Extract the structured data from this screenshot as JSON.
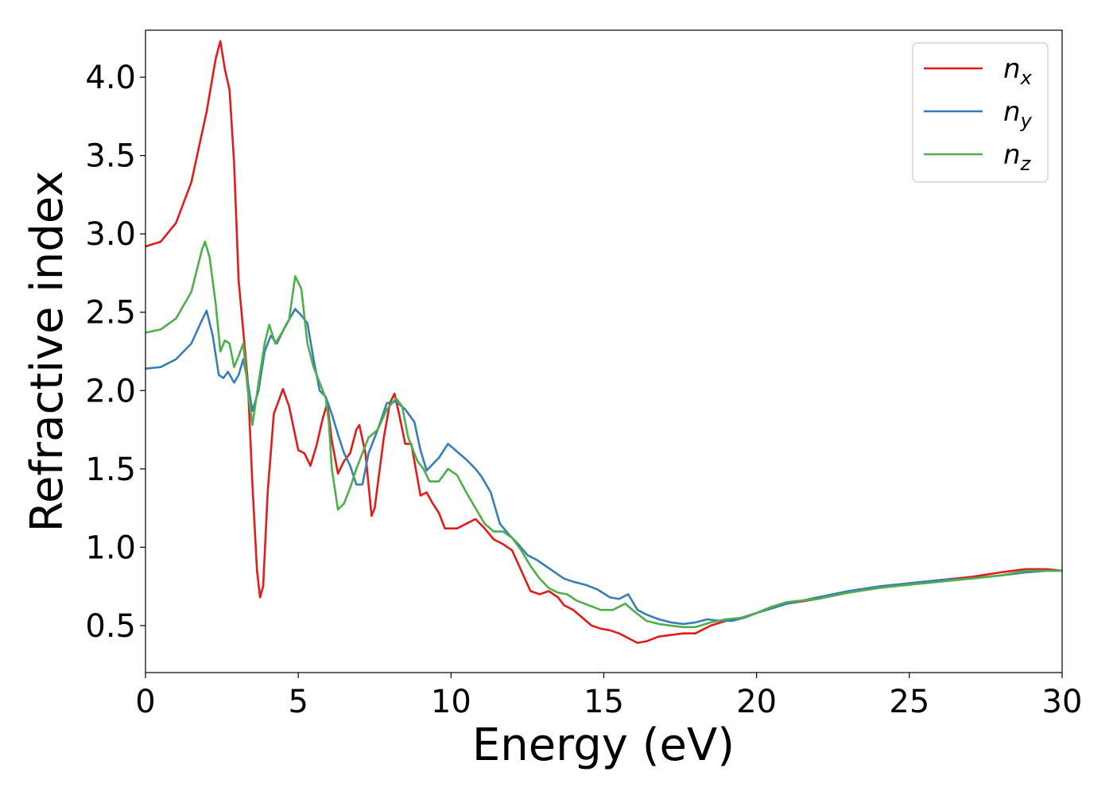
{
  "chart_data": {
    "type": "line",
    "xlabel": "Energy (eV)",
    "ylabel": "Refractive index",
    "xlim": [
      0,
      30
    ],
    "ylim": [
      0.2,
      4.3
    ],
    "xticks": [
      0,
      5,
      10,
      15,
      20,
      25,
      30
    ],
    "xtick_labels": [
      "0",
      "5",
      "10",
      "15",
      "20",
      "25",
      "30"
    ],
    "yticks": [
      0.5,
      1.0,
      1.5,
      2.0,
      2.5,
      3.0,
      3.5,
      4.0
    ],
    "ytick_labels": [
      "0.5",
      "1.0",
      "1.5",
      "2.0",
      "2.5",
      "3.0",
      "3.5",
      "4.0"
    ],
    "grid": false,
    "legend_position": "top-right",
    "series": [
      {
        "name": "n_x",
        "label_base": "n",
        "label_sub": "x",
        "color": "#e41a1c",
        "points": [
          [
            0,
            2.92
          ],
          [
            0.5,
            2.95
          ],
          [
            1,
            3.07
          ],
          [
            1.5,
            3.33
          ],
          [
            2,
            3.78
          ],
          [
            2.3,
            4.12
          ],
          [
            2.45,
            4.23
          ],
          [
            2.6,
            4.05
          ],
          [
            2.75,
            3.92
          ],
          [
            2.9,
            3.45
          ],
          [
            3.05,
            2.7
          ],
          [
            3.2,
            2.38
          ],
          [
            3.35,
            2.05
          ],
          [
            3.5,
            1.4
          ],
          [
            3.65,
            0.85
          ],
          [
            3.75,
            0.68
          ],
          [
            3.85,
            0.75
          ],
          [
            4.0,
            1.35
          ],
          [
            4.2,
            1.85
          ],
          [
            4.5,
            2.01
          ],
          [
            4.7,
            1.9
          ],
          [
            5.0,
            1.62
          ],
          [
            5.2,
            1.6
          ],
          [
            5.4,
            1.52
          ],
          [
            5.6,
            1.65
          ],
          [
            5.8,
            1.82
          ],
          [
            5.95,
            1.92
          ],
          [
            6.1,
            1.68
          ],
          [
            6.3,
            1.47
          ],
          [
            6.5,
            1.55
          ],
          [
            6.7,
            1.6
          ],
          [
            6.9,
            1.75
          ],
          [
            7.0,
            1.78
          ],
          [
            7.2,
            1.6
          ],
          [
            7.4,
            1.2
          ],
          [
            7.5,
            1.25
          ],
          [
            7.8,
            1.7
          ],
          [
            8.0,
            1.92
          ],
          [
            8.15,
            1.98
          ],
          [
            8.3,
            1.85
          ],
          [
            8.5,
            1.66
          ],
          [
            8.7,
            1.66
          ],
          [
            9.0,
            1.33
          ],
          [
            9.2,
            1.35
          ],
          [
            9.4,
            1.28
          ],
          [
            9.6,
            1.22
          ],
          [
            9.8,
            1.12
          ],
          [
            10.2,
            1.12
          ],
          [
            10.5,
            1.15
          ],
          [
            10.8,
            1.18
          ],
          [
            11.1,
            1.12
          ],
          [
            11.4,
            1.05
          ],
          [
            11.7,
            1.02
          ],
          [
            12.0,
            0.98
          ],
          [
            12.3,
            0.85
          ],
          [
            12.6,
            0.72
          ],
          [
            12.9,
            0.7
          ],
          [
            13.2,
            0.72
          ],
          [
            13.5,
            0.68
          ],
          [
            13.7,
            0.63
          ],
          [
            14.0,
            0.6
          ],
          [
            14.3,
            0.55
          ],
          [
            14.6,
            0.5
          ],
          [
            14.9,
            0.48
          ],
          [
            15.2,
            0.47
          ],
          [
            15.5,
            0.45
          ],
          [
            15.8,
            0.42
          ],
          [
            16.1,
            0.39
          ],
          [
            16.4,
            0.4
          ],
          [
            16.8,
            0.43
          ],
          [
            17.2,
            0.44
          ],
          [
            17.6,
            0.45
          ],
          [
            18.0,
            0.45
          ],
          [
            18.5,
            0.5
          ],
          [
            19.0,
            0.53
          ],
          [
            19.5,
            0.55
          ],
          [
            20.0,
            0.58
          ],
          [
            20.5,
            0.62
          ],
          [
            21.0,
            0.64
          ],
          [
            22.0,
            0.67
          ],
          [
            23.0,
            0.71
          ],
          [
            24.0,
            0.74
          ],
          [
            25.0,
            0.77
          ],
          [
            26.0,
            0.79
          ],
          [
            27.0,
            0.81
          ],
          [
            28.0,
            0.84
          ],
          [
            28.8,
            0.86
          ],
          [
            29.5,
            0.86
          ],
          [
            30.0,
            0.85
          ]
        ]
      },
      {
        "name": "n_y",
        "label_base": "n",
        "label_sub": "y",
        "color": "#377eb8",
        "points": [
          [
            0,
            2.14
          ],
          [
            0.5,
            2.15
          ],
          [
            1,
            2.2
          ],
          [
            1.5,
            2.3
          ],
          [
            1.85,
            2.45
          ],
          [
            2.0,
            2.51
          ],
          [
            2.2,
            2.35
          ],
          [
            2.4,
            2.1
          ],
          [
            2.55,
            2.08
          ],
          [
            2.7,
            2.12
          ],
          [
            2.9,
            2.05
          ],
          [
            3.05,
            2.1
          ],
          [
            3.2,
            2.2
          ],
          [
            3.35,
            2.05
          ],
          [
            3.5,
            1.87
          ],
          [
            3.7,
            2.0
          ],
          [
            3.9,
            2.25
          ],
          [
            4.1,
            2.35
          ],
          [
            4.3,
            2.3
          ],
          [
            4.6,
            2.42
          ],
          [
            4.9,
            2.52
          ],
          [
            5.1,
            2.48
          ],
          [
            5.3,
            2.43
          ],
          [
            5.5,
            2.2
          ],
          [
            5.7,
            2.0
          ],
          [
            5.9,
            1.96
          ],
          [
            6.1,
            1.85
          ],
          [
            6.3,
            1.72
          ],
          [
            6.5,
            1.6
          ],
          [
            6.7,
            1.52
          ],
          [
            6.9,
            1.4
          ],
          [
            7.1,
            1.4
          ],
          [
            7.3,
            1.6
          ],
          [
            7.6,
            1.75
          ],
          [
            7.9,
            1.92
          ],
          [
            8.2,
            1.93
          ],
          [
            8.5,
            1.88
          ],
          [
            8.8,
            1.8
          ],
          [
            9.0,
            1.62
          ],
          [
            9.2,
            1.49
          ],
          [
            9.4,
            1.53
          ],
          [
            9.6,
            1.57
          ],
          [
            9.9,
            1.66
          ],
          [
            10.2,
            1.61
          ],
          [
            10.5,
            1.56
          ],
          [
            10.8,
            1.5
          ],
          [
            11.0,
            1.45
          ],
          [
            11.3,
            1.35
          ],
          [
            11.6,
            1.15
          ],
          [
            11.9,
            1.08
          ],
          [
            12.2,
            1.02
          ],
          [
            12.5,
            0.95
          ],
          [
            12.8,
            0.92
          ],
          [
            13.1,
            0.88
          ],
          [
            13.4,
            0.84
          ],
          [
            13.7,
            0.8
          ],
          [
            14.0,
            0.78
          ],
          [
            14.4,
            0.76
          ],
          [
            14.8,
            0.73
          ],
          [
            15.2,
            0.68
          ],
          [
            15.5,
            0.67
          ],
          [
            15.8,
            0.7
          ],
          [
            16.1,
            0.6
          ],
          [
            16.4,
            0.57
          ],
          [
            16.8,
            0.54
          ],
          [
            17.2,
            0.52
          ],
          [
            17.6,
            0.51
          ],
          [
            18.0,
            0.52
          ],
          [
            18.4,
            0.54
          ],
          [
            18.8,
            0.53
          ],
          [
            19.2,
            0.53
          ],
          [
            19.6,
            0.55
          ],
          [
            20.0,
            0.58
          ],
          [
            20.5,
            0.61
          ],
          [
            21.0,
            0.64
          ],
          [
            22.0,
            0.68
          ],
          [
            23.0,
            0.72
          ],
          [
            24.0,
            0.75
          ],
          [
            25.0,
            0.77
          ],
          [
            26.0,
            0.79
          ],
          [
            27.0,
            0.8
          ],
          [
            28.0,
            0.82
          ],
          [
            28.8,
            0.84
          ],
          [
            29.5,
            0.85
          ],
          [
            30.0,
            0.85
          ]
        ]
      },
      {
        "name": "n_z",
        "label_base": "n",
        "label_sub": "z",
        "color": "#4daf4a",
        "points": [
          [
            0,
            2.37
          ],
          [
            0.5,
            2.39
          ],
          [
            1,
            2.46
          ],
          [
            1.5,
            2.63
          ],
          [
            1.85,
            2.9
          ],
          [
            1.95,
            2.95
          ],
          [
            2.1,
            2.85
          ],
          [
            2.3,
            2.55
          ],
          [
            2.45,
            2.25
          ],
          [
            2.6,
            2.32
          ],
          [
            2.75,
            2.3
          ],
          [
            2.9,
            2.15
          ],
          [
            3.05,
            2.22
          ],
          [
            3.2,
            2.3
          ],
          [
            3.35,
            2.0
          ],
          [
            3.5,
            1.78
          ],
          [
            3.7,
            2.05
          ],
          [
            3.9,
            2.3
          ],
          [
            4.05,
            2.42
          ],
          [
            4.25,
            2.3
          ],
          [
            4.5,
            2.38
          ],
          [
            4.7,
            2.45
          ],
          [
            4.9,
            2.73
          ],
          [
            5.1,
            2.65
          ],
          [
            5.3,
            2.3
          ],
          [
            5.5,
            2.15
          ],
          [
            5.7,
            2.05
          ],
          [
            5.9,
            1.95
          ],
          [
            6.0,
            1.8
          ],
          [
            6.1,
            1.5
          ],
          [
            6.3,
            1.24
          ],
          [
            6.5,
            1.28
          ],
          [
            6.7,
            1.38
          ],
          [
            6.9,
            1.5
          ],
          [
            7.1,
            1.6
          ],
          [
            7.3,
            1.7
          ],
          [
            7.6,
            1.75
          ],
          [
            7.9,
            1.88
          ],
          [
            8.2,
            1.95
          ],
          [
            8.4,
            1.9
          ],
          [
            8.6,
            1.7
          ],
          [
            8.9,
            1.55
          ],
          [
            9.1,
            1.5
          ],
          [
            9.3,
            1.42
          ],
          [
            9.6,
            1.42
          ],
          [
            9.9,
            1.5
          ],
          [
            10.2,
            1.46
          ],
          [
            10.5,
            1.35
          ],
          [
            10.8,
            1.25
          ],
          [
            11.1,
            1.15
          ],
          [
            11.4,
            1.1
          ],
          [
            11.7,
            1.1
          ],
          [
            12.0,
            1.06
          ],
          [
            12.3,
            0.98
          ],
          [
            12.6,
            0.88
          ],
          [
            12.9,
            0.8
          ],
          [
            13.2,
            0.74
          ],
          [
            13.5,
            0.71
          ],
          [
            13.8,
            0.7
          ],
          [
            14.1,
            0.66
          ],
          [
            14.5,
            0.63
          ],
          [
            14.9,
            0.6
          ],
          [
            15.3,
            0.6
          ],
          [
            15.7,
            0.64
          ],
          [
            16.0,
            0.59
          ],
          [
            16.4,
            0.53
          ],
          [
            16.8,
            0.51
          ],
          [
            17.2,
            0.5
          ],
          [
            17.6,
            0.49
          ],
          [
            18.0,
            0.49
          ],
          [
            18.5,
            0.52
          ],
          [
            19.0,
            0.54
          ],
          [
            19.5,
            0.55
          ],
          [
            20.0,
            0.58
          ],
          [
            20.5,
            0.62
          ],
          [
            21.0,
            0.65
          ],
          [
            22.0,
            0.67
          ],
          [
            23.0,
            0.71
          ],
          [
            24.0,
            0.74
          ],
          [
            25.0,
            0.76
          ],
          [
            26.0,
            0.78
          ],
          [
            27.0,
            0.8
          ],
          [
            28.0,
            0.82
          ],
          [
            28.8,
            0.85
          ],
          [
            29.5,
            0.85
          ],
          [
            30.0,
            0.85
          ]
        ]
      }
    ]
  }
}
